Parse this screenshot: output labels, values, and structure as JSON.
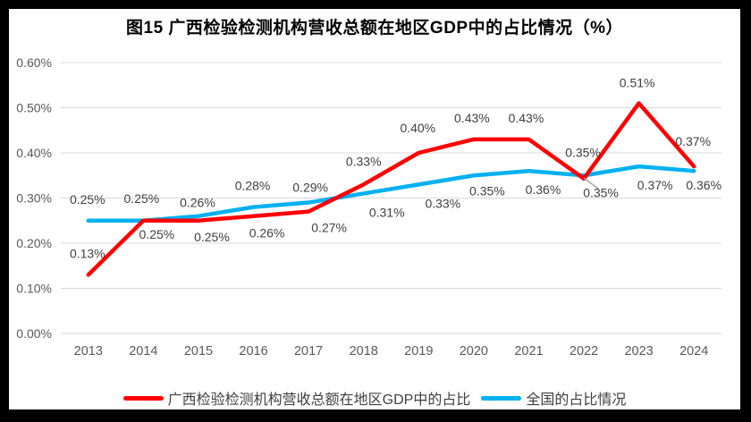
{
  "title": "图15 广西检验检测机构营收总额在地区GDP中的占比情况（%）",
  "chart_data": {
    "type": "line",
    "x": [
      "2013",
      "2014",
      "2015",
      "2016",
      "2017",
      "2018",
      "2019",
      "2020",
      "2021",
      "2022",
      "2023",
      "2024"
    ],
    "series": [
      {
        "name": "广西检验检测机构营收总额在地区GDP中的占比",
        "color": "#ff0000",
        "values": [
          0.13,
          0.25,
          0.25,
          0.26,
          0.27,
          0.33,
          0.4,
          0.43,
          0.43,
          0.35,
          0.51,
          0.37
        ]
      },
      {
        "name": "全国的占比情况",
        "color": "#00b0f0",
        "values": [
          0.25,
          0.25,
          0.26,
          0.28,
          0.29,
          0.31,
          0.33,
          0.35,
          0.36,
          0.35,
          0.37,
          0.36
        ]
      }
    ],
    "y_ticks": [
      "0.00%",
      "0.10%",
      "0.20%",
      "0.30%",
      "0.40%",
      "0.50%",
      "0.60%"
    ],
    "ylim": [
      0,
      0.6
    ],
    "xlabel": "",
    "ylabel": "",
    "grid": true,
    "legend_position": "bottom",
    "data_labels": true,
    "label_format": "0.00%",
    "annotation": "leader line connecting 2022 national point to its 0.35% label"
  },
  "colors": {
    "grid": "#d9d9d9",
    "axis_text": "#595959",
    "label_text": "#404040",
    "leader": "#a6a6a6",
    "frame": "#000000",
    "background": "#ffffff"
  }
}
